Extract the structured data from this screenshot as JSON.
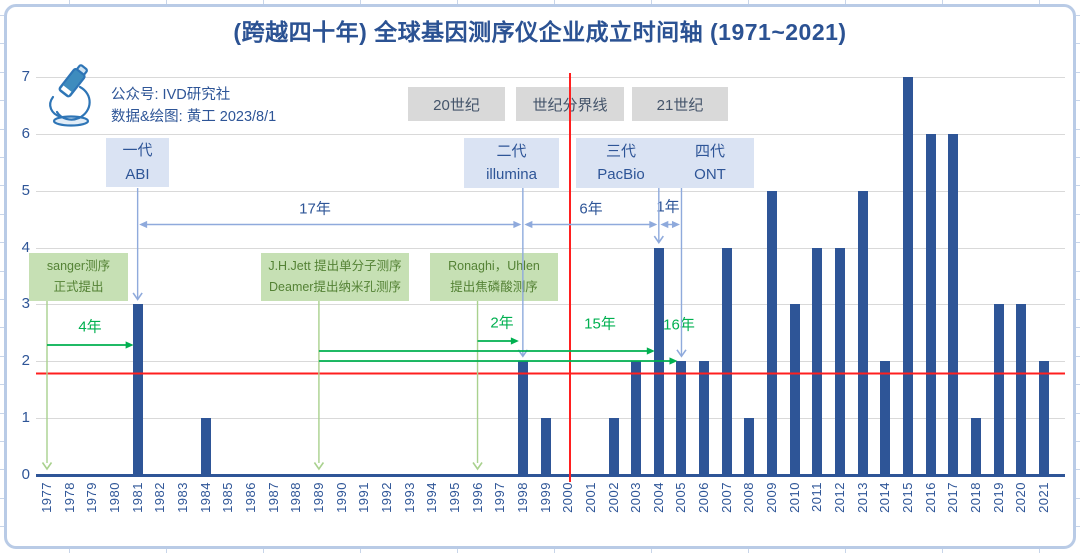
{
  "title": "(跨越四十年) 全球基因测序仪企业成立时间轴 (1971~2021)",
  "credit": {
    "publisher_label": "公众号: IVD研究社",
    "author_label": "数据&绘图: 黄工 2023/8/1"
  },
  "century_labels": {
    "left": "20世纪",
    "divider": "世纪分界线",
    "right": "21世纪"
  },
  "generations": [
    {
      "name": "一代",
      "company": "ABI",
      "year": 1981
    },
    {
      "name": "二代",
      "company": "illumina",
      "year": 1998
    },
    {
      "name": "三代",
      "company": "PacBio",
      "year": 2004
    },
    {
      "name": "四代",
      "company": "ONT",
      "year": 2005
    }
  ],
  "events": [
    {
      "line1": "sanger测序",
      "line2": "正式提出",
      "year": 1977
    },
    {
      "line1": "J.H.Jett 提出单分子测序",
      "line2": "Deamer提出纳米孔测序",
      "year": 1989
    },
    {
      "line1": "Ronaghi，Uhlen",
      "line2": "提出焦磷酸测序",
      "year": 1996
    }
  ],
  "span_labels": {
    "blue": [
      {
        "label": "17年",
        "from": 1981,
        "to": 1998
      },
      {
        "label": "6年",
        "from": 1998,
        "to": 2004
      },
      {
        "label": "1年",
        "from": 2004,
        "to": 2005
      }
    ],
    "green": [
      {
        "label": "4年",
        "from": 1977,
        "to": 1981
      },
      {
        "label": "2年",
        "from": 1996,
        "to": 1998
      },
      {
        "label": "15年",
        "from": 1989,
        "to": 2004
      },
      {
        "label": "16年",
        "from": 1989,
        "to": 2005
      }
    ]
  },
  "colors": {
    "bar": "#2E5597",
    "title": "#2B5293",
    "light_blue_arrow": "#8FAADC",
    "green_arrow": "#00B050",
    "light_green_arrow": "#A9D18E",
    "reference_red": "#FF1F1F",
    "era_box_bg": "#D9D9D9",
    "generation_box_bg": "#DAE3F3",
    "event_box_bg": "#C6E0B4",
    "event_text": "#548235",
    "gridline": "#D9D9D9"
  },
  "chart_data": {
    "type": "bar",
    "title": "(跨越四十年) 全球基因测序仪企业成立时间轴 (1971~2021)",
    "xlabel": "",
    "ylabel": "",
    "categories": [
      1977,
      1978,
      1979,
      1980,
      1981,
      1982,
      1983,
      1984,
      1985,
      1986,
      1987,
      1988,
      1989,
      1990,
      1991,
      1992,
      1993,
      1994,
      1995,
      1996,
      1997,
      1998,
      1999,
      2000,
      2001,
      2002,
      2003,
      2004,
      2005,
      2006,
      2007,
      2008,
      2009,
      2010,
      2011,
      2012,
      2013,
      2014,
      2015,
      2016,
      2017,
      2018,
      2019,
      2020,
      2021
    ],
    "values": [
      0,
      0,
      0,
      0,
      3,
      0,
      0,
      1,
      0,
      0,
      0,
      0,
      0,
      0,
      0,
      0,
      0,
      0,
      0,
      0,
      0,
      2,
      1,
      0,
      0,
      1,
      2,
      4,
      2,
      2,
      4,
      1,
      5,
      3,
      4,
      4,
      5,
      2,
      7,
      6,
      6,
      1,
      3,
      3,
      2
    ],
    "ylim": [
      0,
      7
    ],
    "yticks": [
      0,
      1,
      2,
      3,
      4,
      5,
      6,
      7
    ],
    "grid": true,
    "legend": "none",
    "reference_lines": [
      {
        "orientation": "vertical",
        "x": 2000,
        "meaning": "世纪分界线",
        "color": "#FF1F1F"
      },
      {
        "orientation": "horizontal",
        "y": 1.8,
        "color": "#FF1F1F"
      }
    ]
  }
}
